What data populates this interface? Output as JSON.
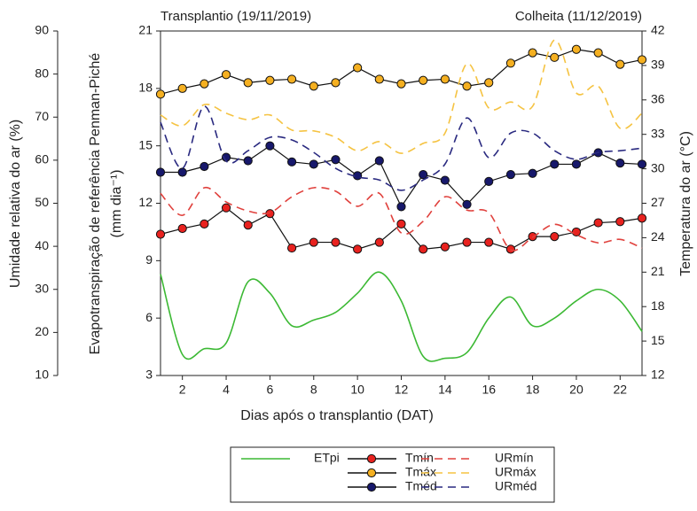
{
  "chart_data": {
    "type": "line",
    "left_text": "Transplantio (19/11/2019)",
    "right_text": "Colheita (11/12/2019)",
    "xlabel": "Dias após o transplantio (DAT)",
    "ylabel": [
      "Evapotranspiração de referência Penman-Piché",
      "(mm dia⁻¹)"
    ],
    "y2label": "Temperatura do ar (°C)",
    "y3label": "Umidade relativa do ar (%)",
    "x": [
      1,
      2,
      3,
      4,
      5,
      6,
      7,
      8,
      9,
      10,
      11,
      12,
      13,
      14,
      15,
      16,
      17,
      18,
      19,
      20,
      21,
      22,
      23
    ],
    "xlim": [
      1,
      23
    ],
    "xticks": [
      2,
      4,
      6,
      8,
      10,
      12,
      14,
      16,
      18,
      20,
      22
    ],
    "ylim": [
      3,
      21
    ],
    "yticks": [
      3,
      6,
      9,
      12,
      15,
      18,
      21
    ],
    "y2lim": [
      12,
      42
    ],
    "y2ticks": [
      12,
      15,
      18,
      21,
      24,
      27,
      30,
      33,
      36,
      39,
      42
    ],
    "y3lim": [
      10,
      90
    ],
    "y3ticks": [
      10,
      20,
      30,
      40,
      50,
      60,
      70,
      80,
      90
    ],
    "series": [
      {
        "name": "ETpi",
        "color": "#3cb934",
        "axis": "y",
        "smooth": true,
        "values": [
          8.3,
          4.1,
          4.4,
          4.7,
          7.9,
          7.3,
          5.6,
          5.9,
          6.3,
          7.3,
          8.4,
          6.9,
          4.0,
          3.9,
          4.2,
          6.0,
          7.1,
          5.6,
          6.0,
          6.9,
          7.5,
          6.9,
          5.3
        ]
      },
      {
        "name": "Tmín",
        "color": "#e8221f",
        "axis": "y2",
        "marker": true,
        "values": [
          24.3,
          24.8,
          25.2,
          26.6,
          25.1,
          26.1,
          23.1,
          23.6,
          23.6,
          23.0,
          23.6,
          25.2,
          23.0,
          23.2,
          23.6,
          23.6,
          23.0,
          24.1,
          24.1,
          24.5,
          25.3,
          25.4,
          25.7
        ]
      },
      {
        "name": "URmín",
        "color": "#e0413d",
        "axis": "y3",
        "dash": true,
        "smooth": true,
        "values": [
          52.3,
          47.2,
          53.6,
          50.3,
          48.2,
          47.8,
          51.5,
          53.6,
          52.8,
          49.3,
          52.3,
          43.1,
          45.8,
          51.5,
          48.4,
          47.8,
          39.2,
          42.1,
          45.1,
          42.7,
          40.8,
          41.6,
          39.6
        ]
      },
      {
        "name": "Tmáx",
        "color": "#f5b021",
        "axis": "y2",
        "marker": true,
        "values": [
          36.5,
          37.0,
          37.4,
          38.2,
          37.5,
          37.7,
          37.8,
          37.2,
          37.5,
          38.8,
          37.8,
          37.4,
          37.7,
          37.8,
          37.2,
          37.5,
          39.2,
          40.1,
          39.7,
          40.4,
          40.1,
          39.1,
          39.5
        ]
      },
      {
        "name": "URmáx",
        "color": "#f5c342",
        "axis": "y3",
        "dash": true,
        "smooth": true,
        "values": [
          70.5,
          68.0,
          72.9,
          70.9,
          69.4,
          70.5,
          67.0,
          66.8,
          65.3,
          62.2,
          64.3,
          61.6,
          63.9,
          66.3,
          82.4,
          72.1,
          73.5,
          72.5,
          87.9,
          75.6,
          77.2,
          67.4,
          70.9
        ]
      },
      {
        "name": "Tméd",
        "color": "#17186b",
        "axis": "y2",
        "marker": true,
        "values": [
          29.7,
          29.7,
          30.2,
          31.0,
          30.7,
          32.0,
          30.6,
          30.4,
          30.8,
          29.4,
          30.7,
          26.7,
          29.5,
          29.0,
          26.9,
          28.9,
          29.5,
          29.6,
          30.4,
          30.4,
          31.4,
          30.5,
          30.4
        ]
      },
      {
        "name": "URméd",
        "color": "#2a2a80",
        "axis": "y3",
        "dash": true,
        "smooth": true,
        "values": [
          68.8,
          58.1,
          72.5,
          59.8,
          62.2,
          65.3,
          64.7,
          61.8,
          58.1,
          56.1,
          55.4,
          53.0,
          55.4,
          59.1,
          69.8,
          60.6,
          66.3,
          66.3,
          62.2,
          60.2,
          61.8,
          62.2,
          62.8
        ]
      }
    ]
  }
}
